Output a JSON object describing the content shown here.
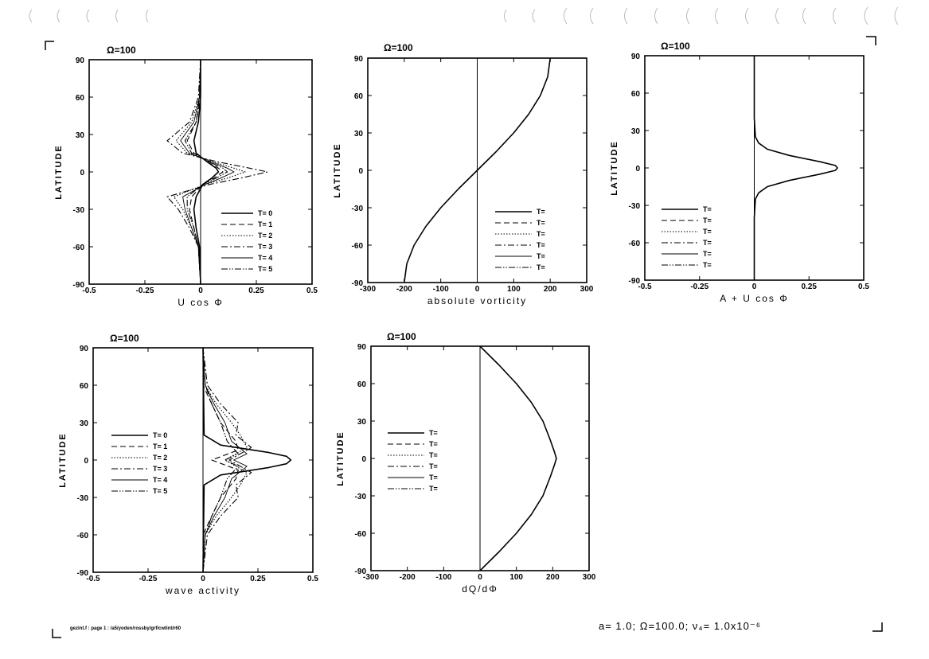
{
  "page": {
    "footer_left": "gezint.f : page 1 : /a5/yoden/rossby/grf/cwtint/r60",
    "parameters": "a= 1.0;  Ω=100.0;  ν₄= 1.0x10⁻⁶"
  },
  "chart_data": [
    {
      "id": "ucos",
      "type": "line",
      "title": "Ω=100",
      "xlabel": "U cos Φ",
      "ylabel": "LATITUDE",
      "xlim": [
        -0.5,
        0.5
      ],
      "ylim": [
        -90,
        90
      ],
      "xticks": [
        -0.5,
        -0.25,
        0,
        0.25,
        0.5
      ],
      "xtick_labels": [
        "-0.5",
        "-0.25",
        "0",
        "0.25",
        "0.5"
      ],
      "yticks": [
        -90,
        -60,
        -30,
        0,
        30,
        60,
        90
      ],
      "legend": {
        "placement": "lower-right",
        "labels": [
          "T= 0",
          "T= 1",
          "T= 2",
          "T= 3",
          "T= 4",
          "T= 5"
        ]
      },
      "series": [
        {
          "name": "T= 0",
          "style": "solid",
          "y": [
            90,
            60,
            40,
            25,
            15,
            8,
            3,
            0,
            -5,
            -10,
            -20,
            -30,
            -45,
            -60,
            -90
          ],
          "x": [
            0,
            0,
            -0.01,
            -0.03,
            -0.02,
            0.03,
            0.07,
            0.08,
            0.05,
            0.01,
            -0.02,
            -0.03,
            -0.02,
            -0.005,
            0
          ]
        },
        {
          "name": "T= 1",
          "style": "dashed",
          "y": [
            90,
            60,
            40,
            25,
            15,
            8,
            3,
            0,
            -5,
            -10,
            -20,
            -30,
            -45,
            -60,
            -90
          ],
          "x": [
            0,
            0,
            -0.02,
            -0.06,
            -0.03,
            0.04,
            0.08,
            0.1,
            0.06,
            0.01,
            -0.04,
            -0.05,
            -0.03,
            -0.01,
            0
          ]
        },
        {
          "name": "T= 2",
          "style": "dotted",
          "y": [
            90,
            60,
            40,
            25,
            15,
            8,
            3,
            0,
            -5,
            -10,
            -20,
            -30,
            -45,
            -60,
            -90
          ],
          "x": [
            0,
            -0.005,
            -0.04,
            -0.11,
            -0.06,
            0.06,
            0.15,
            0.2,
            0.12,
            0.02,
            -0.12,
            -0.08,
            -0.04,
            -0.01,
            0
          ]
        },
        {
          "name": "T= 3",
          "style": "dashdot",
          "y": [
            90,
            60,
            40,
            25,
            15,
            8,
            3,
            0,
            -5,
            -10,
            -20,
            -30,
            -45,
            -60,
            -90
          ],
          "x": [
            0,
            -0.01,
            -0.05,
            -0.15,
            -0.08,
            0.08,
            0.22,
            0.3,
            0.18,
            0.04,
            -0.15,
            -0.1,
            -0.05,
            -0.01,
            0
          ]
        },
        {
          "name": "T= 4",
          "style": "solid-thin",
          "y": [
            90,
            60,
            40,
            25,
            15,
            8,
            3,
            0,
            -5,
            -10,
            -20,
            -30,
            -45,
            -60,
            -90
          ],
          "x": [
            0,
            -0.005,
            -0.03,
            -0.09,
            -0.05,
            0.05,
            0.12,
            0.15,
            0.09,
            0.02,
            -0.08,
            -0.07,
            -0.04,
            -0.01,
            0
          ]
        },
        {
          "name": "T= 5",
          "style": "dashdotdot",
          "y": [
            90,
            60,
            40,
            25,
            15,
            8,
            3,
            0,
            -5,
            -10,
            -20,
            -30,
            -45,
            -60,
            -90
          ],
          "x": [
            0,
            -0.005,
            -0.02,
            -0.07,
            -0.04,
            0.04,
            0.1,
            0.12,
            0.07,
            0.01,
            -0.06,
            -0.06,
            -0.03,
            -0.01,
            0
          ]
        }
      ]
    },
    {
      "id": "vort",
      "type": "line",
      "title": "Ω=100",
      "xlabel": "absolute vorticity",
      "ylabel": "LATITUDE",
      "xlim": [
        -300,
        300
      ],
      "ylim": [
        -90,
        90
      ],
      "xticks": [
        -300,
        -200,
        -100,
        0,
        100,
        200,
        300
      ],
      "xtick_labels": [
        "-300",
        "-200",
        "-100",
        "0",
        "100",
        "200",
        "300"
      ],
      "yticks": [
        -90,
        -60,
        -30,
        0,
        30,
        60,
        90
      ],
      "legend": {
        "placement": "lower-right",
        "labels": [
          "T=",
          "T=",
          "T=",
          "T=",
          "T=",
          "T="
        ]
      },
      "series": [
        {
          "name": "T=",
          "style": "solid",
          "y": [
            -90,
            -75,
            -60,
            -45,
            -30,
            -15,
            0,
            15,
            30,
            45,
            60,
            75,
            90
          ],
          "x": [
            -200,
            -193,
            -173,
            -141,
            -100,
            -52,
            0,
            52,
            100,
            141,
            173,
            193,
            200
          ]
        }
      ]
    },
    {
      "id": "aucos",
      "type": "line",
      "title": "Ω=100",
      "xlabel": "A + U cos Φ",
      "ylabel": "LATITUDE",
      "xlim": [
        -0.5,
        0.5
      ],
      "ylim": [
        -90,
        90
      ],
      "xticks": [
        -0.5,
        -0.25,
        0,
        0.25,
        0.5
      ],
      "xtick_labels": [
        "-0.5",
        "-0.25",
        "0",
        "0.25",
        "0.5"
      ],
      "yticks": [
        -90,
        -60,
        -30,
        0,
        30,
        60,
        90
      ],
      "legend": {
        "placement": "lower-left",
        "labels": [
          "T=",
          "T=",
          "T=",
          "T=",
          "T=",
          "T="
        ]
      },
      "series": [
        {
          "name": "T=",
          "style": "solid",
          "y": [
            90,
            40,
            25,
            20,
            15,
            10,
            5,
            2,
            0,
            -2,
            -5,
            -10,
            -15,
            -20,
            -25,
            -40,
            -90
          ],
          "x": [
            0,
            0,
            0.005,
            0.02,
            0.06,
            0.16,
            0.3,
            0.37,
            0.38,
            0.37,
            0.3,
            0.16,
            0.06,
            0.02,
            0.005,
            0,
            0
          ]
        }
      ]
    },
    {
      "id": "wave",
      "type": "line",
      "title": "Ω=100",
      "xlabel": "wave activity",
      "ylabel": "LATITUDE",
      "xlim": [
        -0.5,
        0.5
      ],
      "ylim": [
        -90,
        90
      ],
      "xticks": [
        -0.5,
        -0.25,
        0,
        0.25,
        0.5
      ],
      "xtick_labels": [
        "-0.5",
        "-0.25",
        "0",
        "0.25",
        "0.5"
      ],
      "yticks": [
        -90,
        -60,
        -30,
        0,
        30,
        60,
        90
      ],
      "legend": {
        "placement": "left",
        "labels": [
          "T= 0",
          "T= 1",
          "T= 2",
          "T= 3",
          "T= 4",
          "T= 5"
        ]
      },
      "series": [
        {
          "name": "T= 0",
          "style": "solid",
          "y": [
            90,
            20,
            12,
            6,
            3,
            0,
            -3,
            -6,
            -12,
            -20,
            -90
          ],
          "x": [
            0,
            0.005,
            0.08,
            0.3,
            0.38,
            0.4,
            0.38,
            0.3,
            0.08,
            0.005,
            0
          ]
        },
        {
          "name": "T= 1",
          "style": "dashed",
          "y": [
            90,
            60,
            45,
            30,
            15,
            8,
            0,
            -8,
            -15,
            -30,
            -45,
            -60,
            -90
          ],
          "x": [
            0,
            0,
            0.04,
            0.08,
            0.15,
            0.16,
            0.04,
            0.16,
            0.15,
            0.08,
            0.04,
            0,
            0
          ]
        },
        {
          "name": "T= 2",
          "style": "dotted",
          "y": [
            90,
            60,
            45,
            30,
            20,
            10,
            0,
            -10,
            -20,
            -30,
            -45,
            -60,
            -90
          ],
          "x": [
            0,
            0.01,
            0.06,
            0.13,
            0.17,
            0.2,
            0.1,
            0.2,
            0.17,
            0.13,
            0.06,
            0.01,
            0
          ]
        },
        {
          "name": "T= 3",
          "style": "dashdot",
          "y": [
            90,
            60,
            45,
            30,
            20,
            10,
            0,
            -10,
            -20,
            -30,
            -45,
            -60,
            -90
          ],
          "x": [
            0,
            0.02,
            0.08,
            0.16,
            0.15,
            0.22,
            0.12,
            0.22,
            0.15,
            0.16,
            0.08,
            0.02,
            0
          ]
        },
        {
          "name": "T= 4",
          "style": "solid-thin",
          "y": [
            90,
            60,
            45,
            30,
            15,
            5,
            0,
            -5,
            -15,
            -30,
            -45,
            -60,
            -90
          ],
          "x": [
            0,
            0.01,
            0.05,
            0.1,
            0.13,
            0.2,
            0.14,
            0.2,
            0.13,
            0.1,
            0.05,
            0.01,
            0
          ]
        },
        {
          "name": "T= 5",
          "style": "dashdotdot",
          "y": [
            90,
            60,
            45,
            30,
            15,
            5,
            0,
            -5,
            -15,
            -30,
            -45,
            -60,
            -90
          ],
          "x": [
            0,
            0.01,
            0.04,
            0.08,
            0.11,
            0.16,
            0.1,
            0.16,
            0.11,
            0.08,
            0.04,
            0.01,
            0
          ]
        }
      ]
    },
    {
      "id": "dqdphi",
      "type": "line",
      "title": "Ω=100",
      "xlabel": "dQ/dΦ",
      "ylabel": "LATITUDE",
      "xlim": [
        -300,
        300
      ],
      "ylim": [
        -90,
        90
      ],
      "xticks": [
        -300,
        -200,
        -100,
        0,
        100,
        200,
        300
      ],
      "xtick_labels": [
        "-300",
        "-200",
        "-100",
        "0",
        "100",
        "200",
        "300"
      ],
      "yticks": [
        -90,
        -60,
        -30,
        0,
        30,
        60,
        90
      ],
      "legend": {
        "placement": "left",
        "labels": [
          "T=",
          "T=",
          "T=",
          "T=",
          "T=",
          "T="
        ]
      },
      "series": [
        {
          "name": "T=",
          "style": "solid",
          "y": [
            -90,
            -75,
            -60,
            -45,
            -30,
            -15,
            -5,
            0,
            5,
            15,
            30,
            45,
            60,
            75,
            90
          ],
          "x": [
            0,
            52,
            100,
            141,
            173,
            193,
            205,
            210,
            205,
            193,
            173,
            141,
            100,
            52,
            0
          ]
        }
      ]
    }
  ]
}
